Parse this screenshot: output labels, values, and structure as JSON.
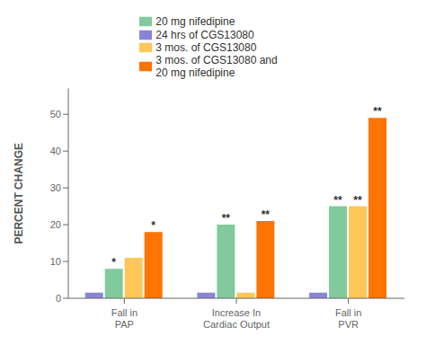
{
  "chart_data": {
    "type": "bar",
    "categories": [
      "Fall in\nPAP",
      "Increase In\nCardiac Output",
      "Fall in\nPVR"
    ],
    "series": [
      {
        "name": "24 hrs of CGS13080",
        "color": "#8884d8",
        "values": [
          1.5,
          1.5,
          1.5
        ]
      },
      {
        "name": "20 mg nifedipine",
        "color": "#82ca9d",
        "values": [
          8,
          20,
          25
        ]
      },
      {
        "name": "3 mos. of CGS13080",
        "color": "#ffc658",
        "values": [
          11,
          1.5,
          25
        ]
      },
      {
        "name": "3 mos. of CGS13080 and\n20 mg nifedipine",
        "color": "#ff7300",
        "values": [
          18,
          21,
          49
        ]
      }
    ],
    "ylabel": "PERCENT CHANGE",
    "ylim": [
      0,
      57
    ],
    "yticks": [
      0,
      10,
      20,
      30,
      40,
      50
    ],
    "grid": false,
    "legend": "top",
    "annotations": [
      {
        "category": "Fall in\nPAP",
        "series": "20 mg nifedipine",
        "text": "*"
      },
      {
        "category": "Fall in\nPAP",
        "series": "3 mos. of CGS13080 and\n20 mg nifedipine",
        "text": "*"
      },
      {
        "category": "Increase In\nCardiac Output",
        "series": "20 mg nifedipine",
        "text": "**"
      },
      {
        "category": "Increase In\nCardiac Output",
        "series": "3 mos. of CGS13080 and\n20 mg nifedipine",
        "text": "**"
      },
      {
        "category": "Fall in\nPVR",
        "series": "20 mg nifedipine",
        "text": "**"
      },
      {
        "category": "Fall in\nPVR",
        "series": "3 mos. of CGS13080",
        "text": "**"
      },
      {
        "category": "Fall in\nPVR",
        "series": "3 mos. of CGS13080 and\n20 mg nifedipine",
        "text": "**"
      }
    ]
  }
}
